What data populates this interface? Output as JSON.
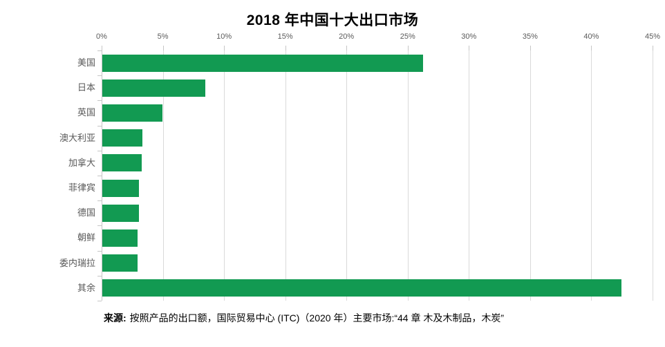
{
  "chart_data": {
    "type": "bar",
    "orientation": "horizontal",
    "title": "2018 年中国十大出口市场",
    "categories": [
      "美国",
      "日本",
      "英国",
      "澳大利亚",
      "加拿大",
      "菲律宾",
      "德国",
      "朝鲜",
      "委内瑞拉",
      "其余"
    ],
    "values": [
      26.2,
      8.4,
      4.9,
      3.3,
      3.2,
      3.0,
      3.0,
      2.9,
      2.9,
      42.4
    ],
    "unit": "%",
    "xlabel": "",
    "ylabel": "",
    "xlim": [
      0,
      45
    ],
    "x_ticks": [
      "0%",
      "5%",
      "10%",
      "15%",
      "20%",
      "25%",
      "30%",
      "35%",
      "40%",
      "45%"
    ],
    "x_axis_position": "top",
    "grid": true,
    "legend": false,
    "bar_color": "#129a52",
    "gridline_color": "#d9d9d9",
    "label_color": "#595959",
    "title_color": "#000000"
  },
  "footer": {
    "label": "来源:",
    "text": "按照产品的出口额，国际贸易中心 (ITC)（2020 年）主要市场:“44 章 木及木制品，木炭”"
  }
}
